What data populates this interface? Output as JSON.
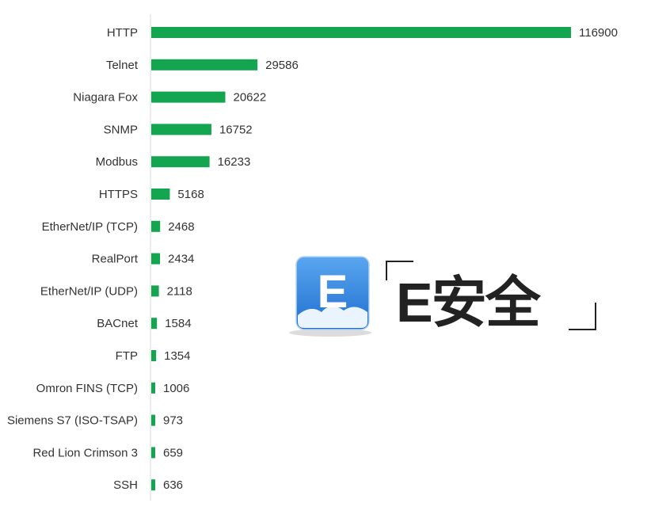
{
  "colors": {
    "bar": "#14a550",
    "axis": "#d9d9d9",
    "label_text": "#333333",
    "logo_blue": "#2f7fd8",
    "logo_text": "#222222"
  },
  "watermark": {
    "logo_letter": "E",
    "text": "E安全",
    "icon_name": "e-security-logo-icon"
  },
  "chart_data": {
    "type": "bar",
    "orientation": "horizontal",
    "categories": [
      "HTTP",
      "Telnet",
      "Niagara Fox",
      "SNMP",
      "Modbus",
      "HTTPS",
      "EtherNet/IP (TCP)",
      "RealPort",
      "EtherNet/IP (UDP)",
      "BACnet",
      "FTP",
      "Omron FINS (TCP)",
      "Siemens S7 (ISO-TSAP)",
      "Red Lion Crimson 3",
      "SSH"
    ],
    "values": [
      116900,
      29586,
      20622,
      16752,
      16233,
      5168,
      2468,
      2434,
      2118,
      1584,
      1354,
      1006,
      973,
      659,
      636
    ],
    "value_labels": [
      "116900",
      "29586",
      "20622",
      "16752",
      "16233",
      "5168",
      "2468",
      "2434",
      "2118",
      "1584",
      "1354",
      "1006",
      "973",
      "659",
      "636"
    ],
    "title": "",
    "xlabel": "",
    "ylabel": "",
    "xlim": [
      0,
      116900
    ],
    "grid": false,
    "legend": "none",
    "data_labels": true
  }
}
